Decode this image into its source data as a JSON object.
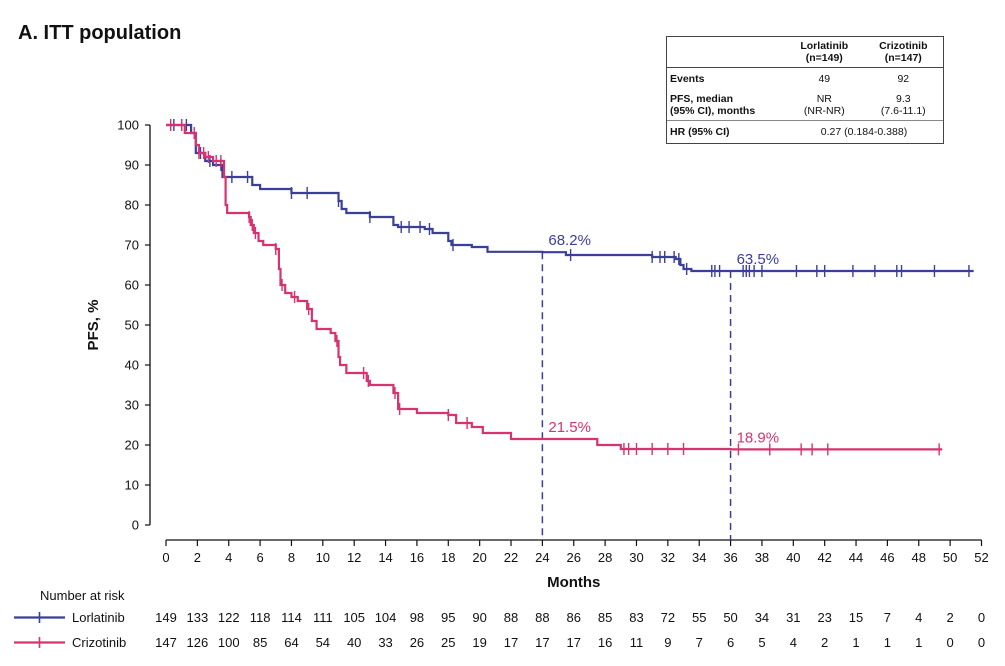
{
  "panel_title": "A. ITT population",
  "stats_table": {
    "col_headers": [
      "Lorlatinib\n(n=149)",
      "Crizotinib\n(n=147)"
    ],
    "col1_line1": "Lorlatinib",
    "col1_line2": "(n=149)",
    "col2_line1": "Crizotinib",
    "col2_line2": "(n=147)",
    "events_label": "Events",
    "events_lorlatinib": "49",
    "events_crizotinib": "92",
    "pfs_label_line1": "PFS, median",
    "pfs_label_line2": "(95% CI), months",
    "pfs_lorlatinib_line1": "NR",
    "pfs_lorlatinib_line2": "(NR-NR)",
    "pfs_crizotinib_line1": "9.3",
    "pfs_crizotinib_line2": "(7.6-11.1)",
    "hr_label": "HR (95% CI)",
    "hr_value": "0.27 (0.184-0.388)"
  },
  "colors": {
    "lorlatinib": "#3b3f9a",
    "crizotinib": "#d6336f",
    "axis": "#111111"
  },
  "chart_data": {
    "type": "line",
    "subtype": "kaplan-meier",
    "title": "A. ITT population",
    "xlabel": "Months",
    "ylabel": "PFS, %",
    "xlim": [
      0,
      52
    ],
    "ylim": [
      0,
      100
    ],
    "x_ticks": [
      0,
      2,
      4,
      6,
      8,
      10,
      12,
      14,
      16,
      18,
      20,
      22,
      24,
      26,
      28,
      30,
      32,
      34,
      36,
      38,
      40,
      42,
      44,
      46,
      48,
      50,
      52
    ],
    "y_ticks": [
      0,
      10,
      20,
      30,
      40,
      50,
      60,
      70,
      80,
      90,
      100
    ],
    "series": [
      {
        "name": "Lorlatinib",
        "color": "#3b3f9a",
        "steps": [
          [
            0,
            100
          ],
          [
            1.6,
            98
          ],
          [
            1.9,
            93
          ],
          [
            2.5,
            91
          ],
          [
            3,
            90
          ],
          [
            3.6,
            87
          ],
          [
            5.5,
            85
          ],
          [
            6,
            84
          ],
          [
            7.5,
            84
          ],
          [
            8,
            83
          ],
          [
            9,
            83
          ],
          [
            11,
            81
          ],
          [
            11.2,
            79
          ],
          [
            11.5,
            78
          ],
          [
            13,
            77
          ],
          [
            14.5,
            75
          ],
          [
            14.8,
            74.5
          ],
          [
            16.5,
            74
          ],
          [
            17,
            73
          ],
          [
            18,
            71
          ],
          [
            18.2,
            70
          ],
          [
            19.5,
            69.5
          ],
          [
            20.5,
            68.3
          ],
          [
            24,
            68.2
          ],
          [
            25.5,
            67.5
          ],
          [
            31,
            67
          ],
          [
            32.5,
            66.5
          ],
          [
            32.8,
            65
          ],
          [
            33,
            64
          ],
          [
            33.5,
            63.5
          ],
          [
            36,
            63.5
          ],
          [
            51.5,
            63.5
          ]
        ],
        "censors": [
          0.5,
          1,
          1.3,
          2.2,
          2.8,
          3.5,
          4.2,
          5.2,
          8,
          9,
          11,
          13,
          15,
          15.5,
          16.2,
          16.8,
          18.3,
          25.8,
          31,
          31.5,
          31.8,
          32.4,
          32.7,
          33.2,
          34.8,
          35,
          35.3,
          36.8,
          37,
          37.2,
          37.5,
          38,
          40.2,
          41.5,
          42,
          43.8,
          45.2,
          46.6,
          46.9,
          49,
          51.2
        ],
        "annotation": {
          "x": 24,
          "y": 68.2,
          "label": "68.2%"
        },
        "annotation36": {
          "x": 36,
          "y": 63.5,
          "label": "63.5%"
        },
        "risk": [
          149,
          133,
          122,
          118,
          114,
          111,
          105,
          104,
          98,
          95,
          90,
          88,
          88,
          86,
          85,
          83,
          72,
          55,
          50,
          34,
          31,
          23,
          15,
          7,
          4,
          2,
          0
        ]
      },
      {
        "name": "Crizotinib",
        "color": "#d6336f",
        "steps": [
          [
            0,
            100
          ],
          [
            1.2,
            98
          ],
          [
            1.9,
            95
          ],
          [
            2.1,
            93
          ],
          [
            2.5,
            92
          ],
          [
            3,
            91
          ],
          [
            3.7,
            87
          ],
          [
            3.8,
            80
          ],
          [
            3.9,
            78
          ],
          [
            5.3,
            77
          ],
          [
            5.4,
            75
          ],
          [
            5.6,
            73
          ],
          [
            5.9,
            71
          ],
          [
            6.2,
            70
          ],
          [
            7,
            69
          ],
          [
            7.2,
            64
          ],
          [
            7.3,
            60
          ],
          [
            7.6,
            58
          ],
          [
            8,
            57
          ],
          [
            8.4,
            56
          ],
          [
            9,
            54
          ],
          [
            9.3,
            51
          ],
          [
            9.6,
            49
          ],
          [
            10.5,
            48
          ],
          [
            10.8,
            46
          ],
          [
            11,
            42
          ],
          [
            11.1,
            40
          ],
          [
            11.5,
            38
          ],
          [
            12.8,
            36
          ],
          [
            13,
            35
          ],
          [
            14.5,
            33
          ],
          [
            14.8,
            29
          ],
          [
            16,
            28
          ],
          [
            18,
            27.5
          ],
          [
            18.5,
            25.5
          ],
          [
            19.5,
            24.5
          ],
          [
            20.2,
            23
          ],
          [
            22,
            21.5
          ],
          [
            24,
            21.5
          ],
          [
            27.5,
            20
          ],
          [
            29,
            19
          ],
          [
            36,
            18.9
          ],
          [
            49.5,
            18.9
          ]
        ],
        "censors": [
          0.3,
          1,
          1.8,
          2.1,
          2.4,
          2.7,
          3.2,
          3.5,
          5.3,
          5.5,
          5.7,
          7,
          7.4,
          8.2,
          9.1,
          10.9,
          12.6,
          12.9,
          14.6,
          14.9,
          18,
          19.2,
          29.2,
          29.5,
          30,
          31,
          32,
          33,
          36.5,
          38.5,
          40.5,
          41.2,
          42.2,
          49.3
        ],
        "annotation": {
          "x": 24,
          "y": 21.5,
          "label": "21.5%"
        },
        "annotation36": {
          "x": 36,
          "y": 18.9,
          "label": "18.9%"
        },
        "risk": [
          147,
          126,
          100,
          85,
          64,
          54,
          40,
          33,
          26,
          25,
          19,
          17,
          17,
          17,
          16,
          11,
          9,
          7,
          6,
          5,
          4,
          2,
          1,
          1,
          1,
          0,
          0
        ]
      }
    ],
    "reference_lines": [
      {
        "x": 24,
        "y": 68.2
      },
      {
        "x": 36,
        "y": 63.5
      }
    ]
  },
  "risk_table": {
    "title": "Number at risk",
    "labels": [
      "Lorlatinib",
      "Crizotinib"
    ]
  }
}
